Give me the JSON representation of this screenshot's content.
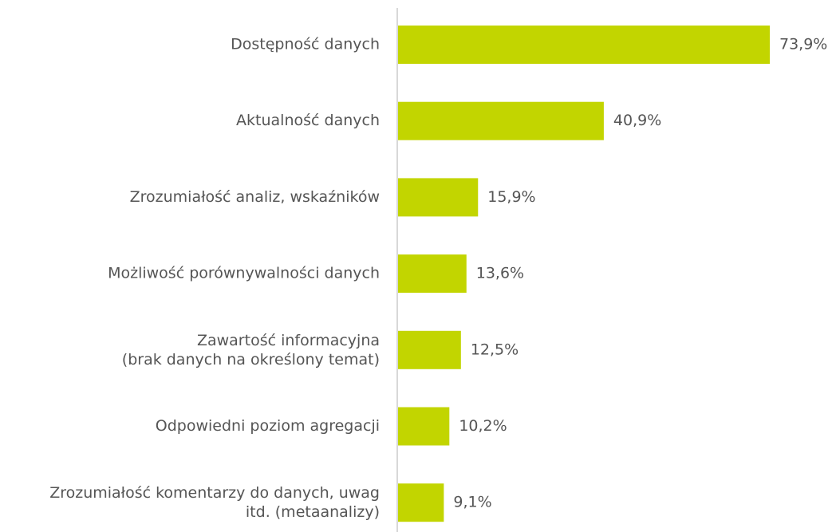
{
  "chart_data": {
    "type": "barh",
    "categories": [
      "Dostępność danych",
      "Aktualność danych",
      "Zrozumiałość analiz, wskaźników",
      "Możliwość porównywalności danych",
      "Zawartość informacyjna\n(brak danych na określony temat)",
      "Odpowiedni poziom agregacji",
      "Zrozumiałość komentarzy do danych, uwag\nitd. (metaanalizy)"
    ],
    "values": [
      73.9,
      40.9,
      15.9,
      13.6,
      12.5,
      10.2,
      9.1
    ],
    "value_labels": [
      "73,9%",
      "40,9%",
      "15,9%",
      "13,6%",
      "12,5%",
      "10,2%",
      "9,1%"
    ],
    "color": "#c2d500"
  }
}
